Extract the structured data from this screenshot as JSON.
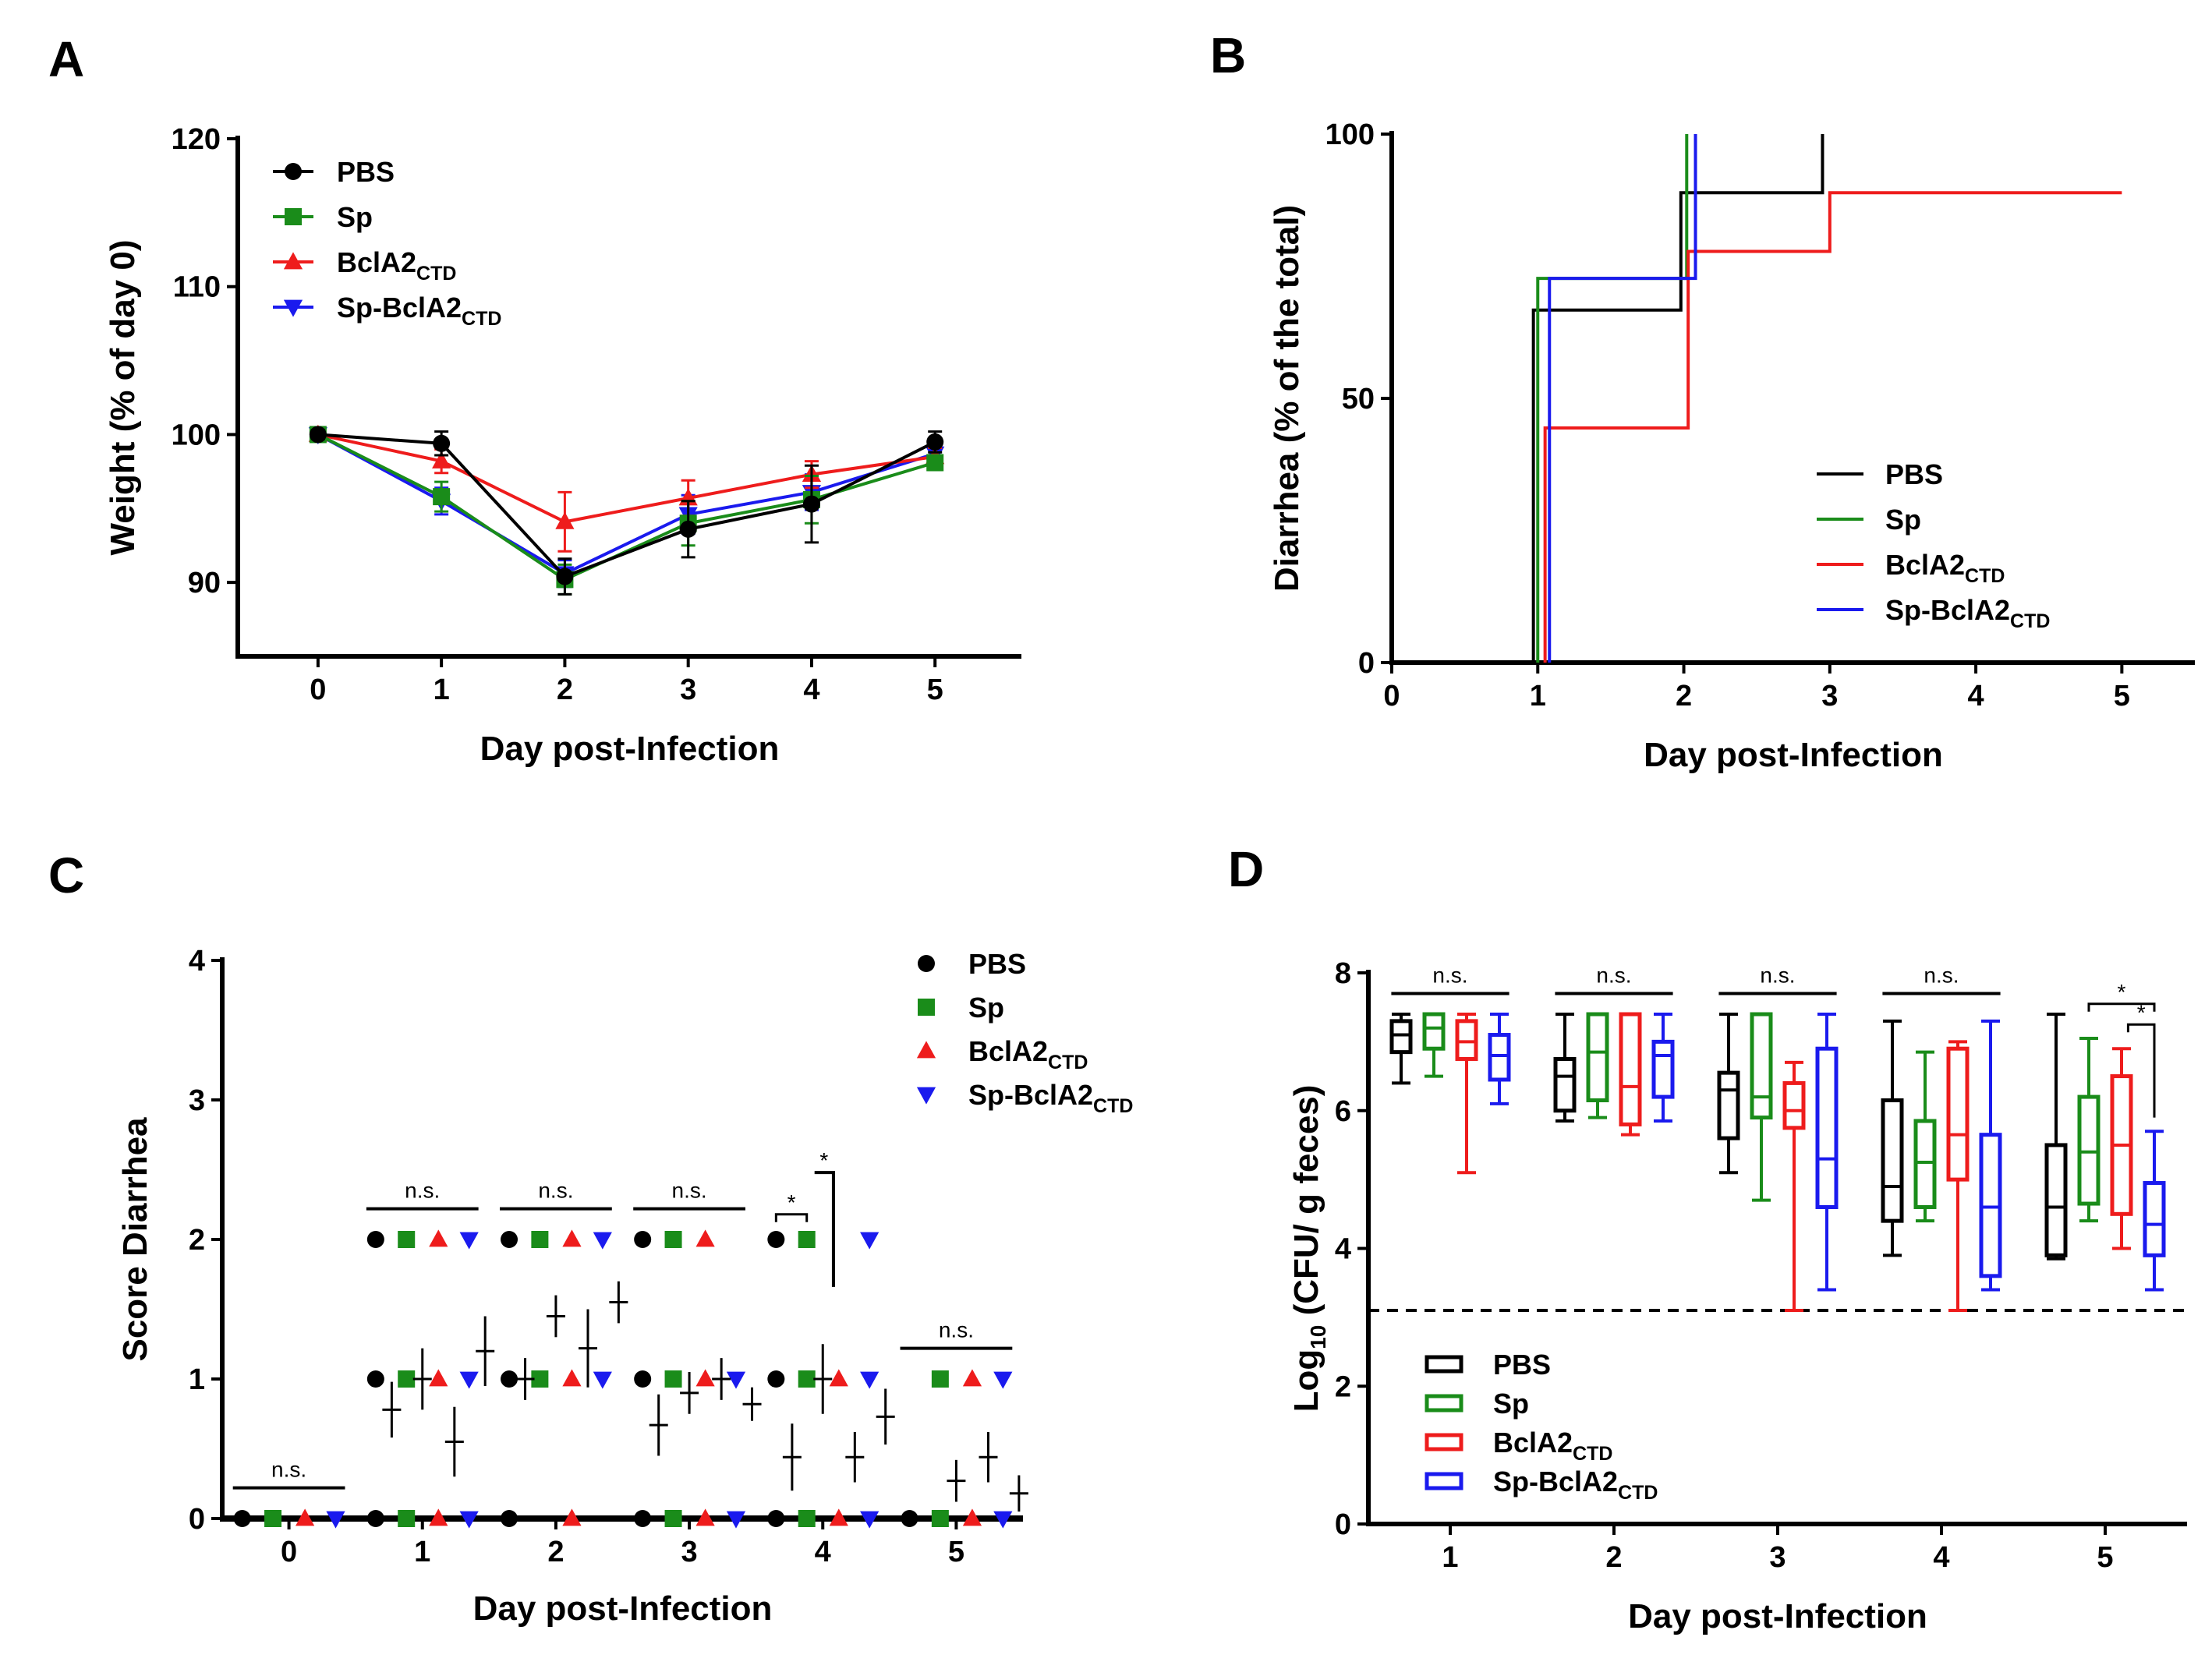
{
  "colors": {
    "PBS": "#000000",
    "Sp": "#1a8c1a",
    "BclA2": "#ee1c1c",
    "SpBclA2": "#1a1aee"
  },
  "chart_data": [
    {
      "panel": "A",
      "type": "line",
      "xlabel": "Day post-Infection",
      "ylabel": "Weight (% of day 0)",
      "xlim": [
        -0.65,
        5.7
      ],
      "ylim": [
        85,
        120
      ],
      "xticks": [
        "0",
        "1",
        "2",
        "3",
        "4",
        "5"
      ],
      "yticks": [
        "90",
        "100",
        "110",
        "120"
      ],
      "ytick_values": [
        90,
        100,
        110,
        120
      ],
      "x": [
        0,
        1,
        2,
        3,
        4,
        5
      ],
      "series": [
        {
          "key": "PBS",
          "name": "PBS",
          "marker": "circle",
          "values": [
            100,
            99.4,
            90.4,
            93.6,
            95.3,
            99.5
          ],
          "err": [
            0.3,
            0.8,
            1.2,
            1.9,
            2.6,
            0.7
          ]
        },
        {
          "key": "Sp",
          "name": "Sp",
          "marker": "square",
          "values": [
            100,
            95.8,
            90.2,
            94.0,
            95.6,
            98.1
          ],
          "err": [
            0.3,
            1.0,
            1.0,
            1.5,
            1.6,
            0.5
          ]
        },
        {
          "key": "BclA2",
          "name": "BclA2",
          "sub": "CTD",
          "marker": "triangle-up",
          "values": [
            100,
            98.2,
            94.1,
            95.7,
            97.3,
            98.5
          ],
          "err": [
            0.3,
            0.8,
            2.0,
            1.2,
            0.9,
            0.6
          ]
        },
        {
          "key": "SpBclA2",
          "name": "Sp-BclA2",
          "sub": "CTD",
          "marker": "triangle-down",
          "values": [
            100,
            95.5,
            90.6,
            94.6,
            96.1,
            98.7
          ],
          "err": [
            0.3,
            0.9,
            0.9,
            1.3,
            1.2,
            0.6
          ]
        }
      ]
    },
    {
      "panel": "B",
      "type": "line",
      "subtype": "step",
      "xlabel": "Day post-Infection",
      "ylabel": "Diarrhea (% of the total)",
      "xlim": [
        0,
        5.5
      ],
      "ylim": [
        0,
        100
      ],
      "xticks": [
        "0",
        "1",
        "2",
        "3",
        "4",
        "5"
      ],
      "yticks": [
        "0",
        "50",
        "100"
      ],
      "ytick_values": [
        0,
        50,
        100
      ],
      "series": [
        {
          "key": "PBS",
          "name": "PBS",
          "x": [
            0.97,
            0.97,
            1.98,
            1.98,
            2.95,
            2.95
          ],
          "y": [
            0,
            66.7,
            66.7,
            88.9,
            88.9,
            100
          ]
        },
        {
          "key": "Sp",
          "name": "Sp",
          "x": [
            1.0,
            1.0,
            2.02,
            2.02
          ],
          "y": [
            0,
            72.7,
            72.7,
            100
          ]
        },
        {
          "key": "BclA2",
          "name": "BclA2",
          "sub": "CTD",
          "x": [
            1.05,
            1.05,
            2.03,
            2.03,
            3.0,
            3.0,
            5.0
          ],
          "y": [
            0,
            44.4,
            44.4,
            77.8,
            77.8,
            88.9,
            88.9
          ]
        },
        {
          "key": "SpBclA2",
          "name": "Sp-BclA2",
          "sub": "CTD",
          "x": [
            1.08,
            1.08,
            2.08,
            2.08
          ],
          "y": [
            0,
            72.7,
            72.7,
            100
          ]
        }
      ]
    },
    {
      "panel": "C",
      "type": "scatter",
      "xlabel": "Day post-Infection",
      "ylabel": "Score Diarrhea",
      "xlim": [
        -0.5,
        5.5
      ],
      "ylim": [
        0,
        4
      ],
      "xticks": [
        "0",
        "1",
        "2",
        "3",
        "4",
        "5"
      ],
      "yticks": [
        "0",
        "1",
        "2",
        "3",
        "4"
      ],
      "ytick_values": [
        0,
        1,
        2,
        3,
        4
      ],
      "series": [
        {
          "key": "PBS",
          "name": "PBS",
          "marker": "circle"
        },
        {
          "key": "Sp",
          "name": "Sp",
          "marker": "square"
        },
        {
          "key": "BclA2",
          "name": "BclA2",
          "sub": "CTD",
          "marker": "triangle-up"
        },
        {
          "key": "SpBclA2",
          "name": "Sp-BclA2",
          "sub": "CTD",
          "marker": "triangle-down"
        }
      ],
      "groups": [
        {
          "day": 0,
          "PBS": [
            0
          ],
          "Sp": [
            0
          ],
          "BclA2": [
            0
          ],
          "SpBclA2": [
            0
          ],
          "mean_sem": []
        },
        {
          "day": 1,
          "PBS": [
            2,
            1,
            0
          ],
          "Sp": [
            2,
            1,
            0
          ],
          "BclA2": [
            2,
            1,
            0
          ],
          "SpBclA2": [
            2,
            1,
            0
          ],
          "mean_sem": [
            [
              0.78,
              0.2
            ],
            [
              1.0,
              0.22
            ],
            [
              0.55,
              0.25
            ],
            [
              1.2,
              0.25
            ]
          ]
        },
        {
          "day": 2,
          "PBS": [
            2,
            1,
            0
          ],
          "Sp": [
            2,
            1
          ],
          "BclA2": [
            2,
            1,
            0
          ],
          "SpBclA2": [
            2,
            1
          ],
          "mean_sem": [
            [
              1.0,
              0.15
            ],
            [
              1.45,
              0.15
            ],
            [
              1.22,
              0.28
            ],
            [
              1.55,
              0.15
            ]
          ]
        },
        {
          "day": 3,
          "PBS": [
            2,
            1,
            0
          ],
          "Sp": [
            2,
            1,
            0
          ],
          "BclA2": [
            2,
            1,
            0
          ],
          "SpBclA2": [
            1,
            0
          ],
          "mean_sem": [
            [
              0.67,
              0.22
            ],
            [
              0.9,
              0.15
            ],
            [
              1.0,
              0.15
            ],
            [
              0.82,
              0.12
            ]
          ]
        },
        {
          "day": 4,
          "PBS": [
            2,
            1,
            0
          ],
          "Sp": [
            2,
            1,
            0
          ],
          "BclA2": [
            1,
            0
          ],
          "SpBclA2": [
            2,
            1,
            0
          ],
          "mean_sem": [
            [
              0.44,
              0.24
            ],
            [
              1.0,
              0.25
            ],
            [
              0.44,
              0.18
            ],
            [
              0.73,
              0.2
            ]
          ]
        },
        {
          "day": 5,
          "PBS": [
            0
          ],
          "Sp": [
            1,
            0
          ],
          "BclA2": [
            1,
            0
          ],
          "SpBclA2": [
            1,
            0
          ],
          "mean_sem": [
            [
              0.0,
              0.0
            ],
            [
              0.27,
              0.15
            ],
            [
              0.44,
              0.18
            ],
            [
              0.18,
              0.13
            ]
          ]
        }
      ],
      "annotations": {
        "ns_label": "n.s.",
        "ns_days": [
          0,
          1,
          2,
          3,
          5
        ],
        "star_label": "*",
        "star_day": 4
      }
    },
    {
      "panel": "D",
      "type": "box",
      "xlabel": "Day post-Infection",
      "ylabel": "Log10 (CFU/ g feces)",
      "ylabel_base": "Log",
      "ylabel_sub": "10",
      "ylabel_rest": " (CFU/ g feces)",
      "xlim": [
        0.5,
        5.5
      ],
      "ylim": [
        0,
        8
      ],
      "xticks": [
        "1",
        "2",
        "3",
        "4",
        "5"
      ],
      "yticks": [
        "0",
        "2",
        "4",
        "6",
        "8"
      ],
      "ytick_values": [
        0,
        2,
        4,
        6,
        8
      ],
      "detection_limit": 3.1,
      "series": [
        {
          "key": "PBS",
          "name": "PBS"
        },
        {
          "key": "Sp",
          "name": "Sp"
        },
        {
          "key": "BclA2",
          "name": "BclA2",
          "sub": "CTD"
        },
        {
          "key": "SpBclA2",
          "name": "Sp-BclA2",
          "sub": "CTD"
        }
      ],
      "boxes": [
        {
          "day": 1,
          "PBS": [
            6.4,
            6.85,
            7.1,
            7.3,
            7.4
          ],
          "Sp": [
            6.5,
            6.9,
            7.2,
            7.4,
            7.4
          ],
          "BclA2": [
            5.1,
            6.75,
            7.0,
            7.3,
            7.4
          ],
          "SpBclA2": [
            6.1,
            6.45,
            6.8,
            7.1,
            7.4
          ]
        },
        {
          "day": 2,
          "PBS": [
            5.85,
            6.0,
            6.5,
            6.75,
            7.4
          ],
          "Sp": [
            5.9,
            6.15,
            6.85,
            7.4,
            7.4
          ],
          "BclA2": [
            5.65,
            5.8,
            6.35,
            7.4,
            7.4
          ],
          "SpBclA2": [
            5.85,
            6.2,
            6.8,
            7.0,
            7.4
          ]
        },
        {
          "day": 3,
          "PBS": [
            5.1,
            5.6,
            6.3,
            6.55,
            7.4
          ],
          "Sp": [
            4.7,
            5.9,
            6.2,
            7.4,
            7.4
          ],
          "BclA2": [
            3.1,
            5.75,
            6.0,
            6.4,
            6.7
          ],
          "SpBclA2": [
            3.4,
            4.6,
            5.3,
            6.9,
            7.4
          ]
        },
        {
          "day": 4,
          "PBS": [
            3.9,
            4.4,
            4.9,
            6.15,
            7.3
          ],
          "Sp": [
            4.4,
            4.6,
            5.25,
            5.85,
            6.85
          ],
          "BclA2": [
            3.1,
            5.0,
            5.65,
            6.9,
            7.0
          ],
          "SpBclA2": [
            3.4,
            3.6,
            4.6,
            5.65,
            7.3
          ]
        },
        {
          "day": 5,
          "PBS": [
            3.85,
            3.9,
            4.6,
            5.5,
            7.4
          ],
          "Sp": [
            4.4,
            4.65,
            5.4,
            6.2,
            7.05
          ],
          "BclA2": [
            4.0,
            4.5,
            5.5,
            6.5,
            6.9
          ],
          "SpBclA2": [
            3.4,
            3.9,
            4.35,
            4.95,
            5.7
          ]
        }
      ],
      "annotations": {
        "ns_label": "n.s.",
        "ns_days": [
          1,
          2,
          3,
          4
        ],
        "star_label": "*"
      }
    }
  ]
}
